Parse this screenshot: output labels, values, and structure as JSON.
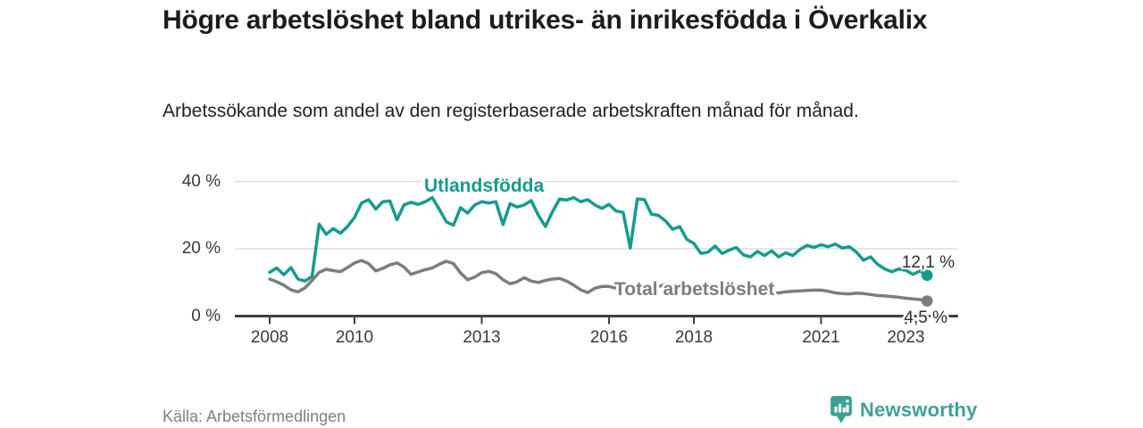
{
  "title": "Högre arbetslöshet bland utrikes- än inrikesfödda i Överkalix",
  "subtitle": "Arbetssökande som andel av den registerbaserade arbetskraften månad för månad.",
  "source": "Källa: Arbetsförmedlingen",
  "branding": {
    "name": "Newsworthy",
    "icon": "newsworthy-pin-barchart-icon",
    "icon_color": "#3ba292",
    "text_color": "#40a294"
  },
  "colors": {
    "foreign_born_line": "#169b8d",
    "total_line": "#7d7d7d",
    "grid": "#d8d8d8",
    "axis": "#404040",
    "end_label_text": "#2e2e2e"
  },
  "chart_data": {
    "type": "line",
    "title": "Högre arbetslöshet bland utrikes- än inrikesfödda i Överkalix",
    "subtitle": "Arbetssökande som andel av den registerbaserade arbetskraften månad för månad.",
    "unit": "%",
    "grid": "horizontal",
    "legend": "inline-labels",
    "xlim": [
      2007.15,
      2024.25
    ],
    "ylim": [
      0,
      42
    ],
    "x_ticks": [
      2008,
      2010,
      2013,
      2016,
      2018,
      2021,
      2023
    ],
    "x_tick_labels": [
      "2008",
      "2010",
      "2013",
      "2016",
      "2018",
      "2021",
      "2023"
    ],
    "y_ticks": [
      0,
      20,
      40
    ],
    "y_tick_labels": [
      "0 %",
      "20 %",
      "40 %"
    ],
    "x_start": 2008.0,
    "x_step_years": 0.166667,
    "series": [
      {
        "name": "Utlandsfödda",
        "color": "#169b8d",
        "end_label": "12,1 %",
        "end_value": 12.1,
        "values": [
          13.0,
          14.3,
          12.3,
          14.4,
          11.0,
          10.4,
          11.8,
          27.3,
          24.3,
          26.0,
          24.6,
          26.6,
          29.3,
          33.6,
          34.6,
          31.8,
          34.0,
          34.2,
          28.6,
          33.0,
          33.8,
          33.2,
          34.0,
          35.2,
          31.7,
          28.0,
          27.0,
          32.2,
          30.6,
          33.0,
          34.0,
          33.6,
          34.0,
          27.2,
          33.4,
          32.4,
          33.0,
          34.3,
          30.0,
          26.6,
          31.0,
          34.8,
          34.5,
          35.2,
          34.0,
          34.6,
          33.0,
          32.0,
          33.2,
          31.2,
          30.8,
          20.2,
          34.8,
          34.6,
          30.3,
          29.9,
          28.3,
          25.8,
          26.6,
          22.8,
          21.6,
          18.6,
          19.0,
          20.8,
          18.6,
          19.6,
          20.4,
          18.2,
          17.6,
          19.2,
          18.0,
          19.4,
          17.6,
          18.8,
          18.0,
          19.8,
          21.0,
          20.4,
          21.2,
          20.6,
          21.4,
          20.2,
          20.6,
          19.0,
          16.6,
          17.6,
          15.4,
          14.0,
          13.2,
          14.0,
          13.6,
          12.4,
          13.4,
          12.1
        ]
      },
      {
        "name": "Total arbetslöshet",
        "color": "#7d7d7d",
        "end_label": "4,5 %",
        "end_value": 4.5,
        "values": [
          11.0,
          10.2,
          9.2,
          7.8,
          7.2,
          8.4,
          10.6,
          13.0,
          13.9,
          13.5,
          13.2,
          14.4,
          15.8,
          16.5,
          15.6,
          13.4,
          14.2,
          15.2,
          15.8,
          14.6,
          12.4,
          13.1,
          13.8,
          14.3,
          15.4,
          16.3,
          15.6,
          12.8,
          10.8,
          11.6,
          12.9,
          13.3,
          12.6,
          10.8,
          9.6,
          10.2,
          11.4,
          10.4,
          10.0,
          10.6,
          11.0,
          11.2,
          10.4,
          9.2,
          7.8,
          7.0,
          8.3,
          8.8,
          8.8,
          8.3,
          8.0,
          7.2,
          7.6,
          8.0,
          8.2,
          8.8,
          9.4,
          9.2,
          8.8,
          8.4,
          8.0,
          7.4,
          7.8,
          8.2,
          8.4,
          8.0,
          7.6,
          7.4,
          7.2,
          7.0,
          6.6,
          6.9,
          6.9,
          7.2,
          7.4,
          7.5,
          7.6,
          7.7,
          7.7,
          7.4,
          6.9,
          6.7,
          6.6,
          6.8,
          6.7,
          6.4,
          6.1,
          6.0,
          5.8,
          5.6,
          5.3,
          5.1,
          4.9,
          4.5
        ]
      }
    ]
  }
}
